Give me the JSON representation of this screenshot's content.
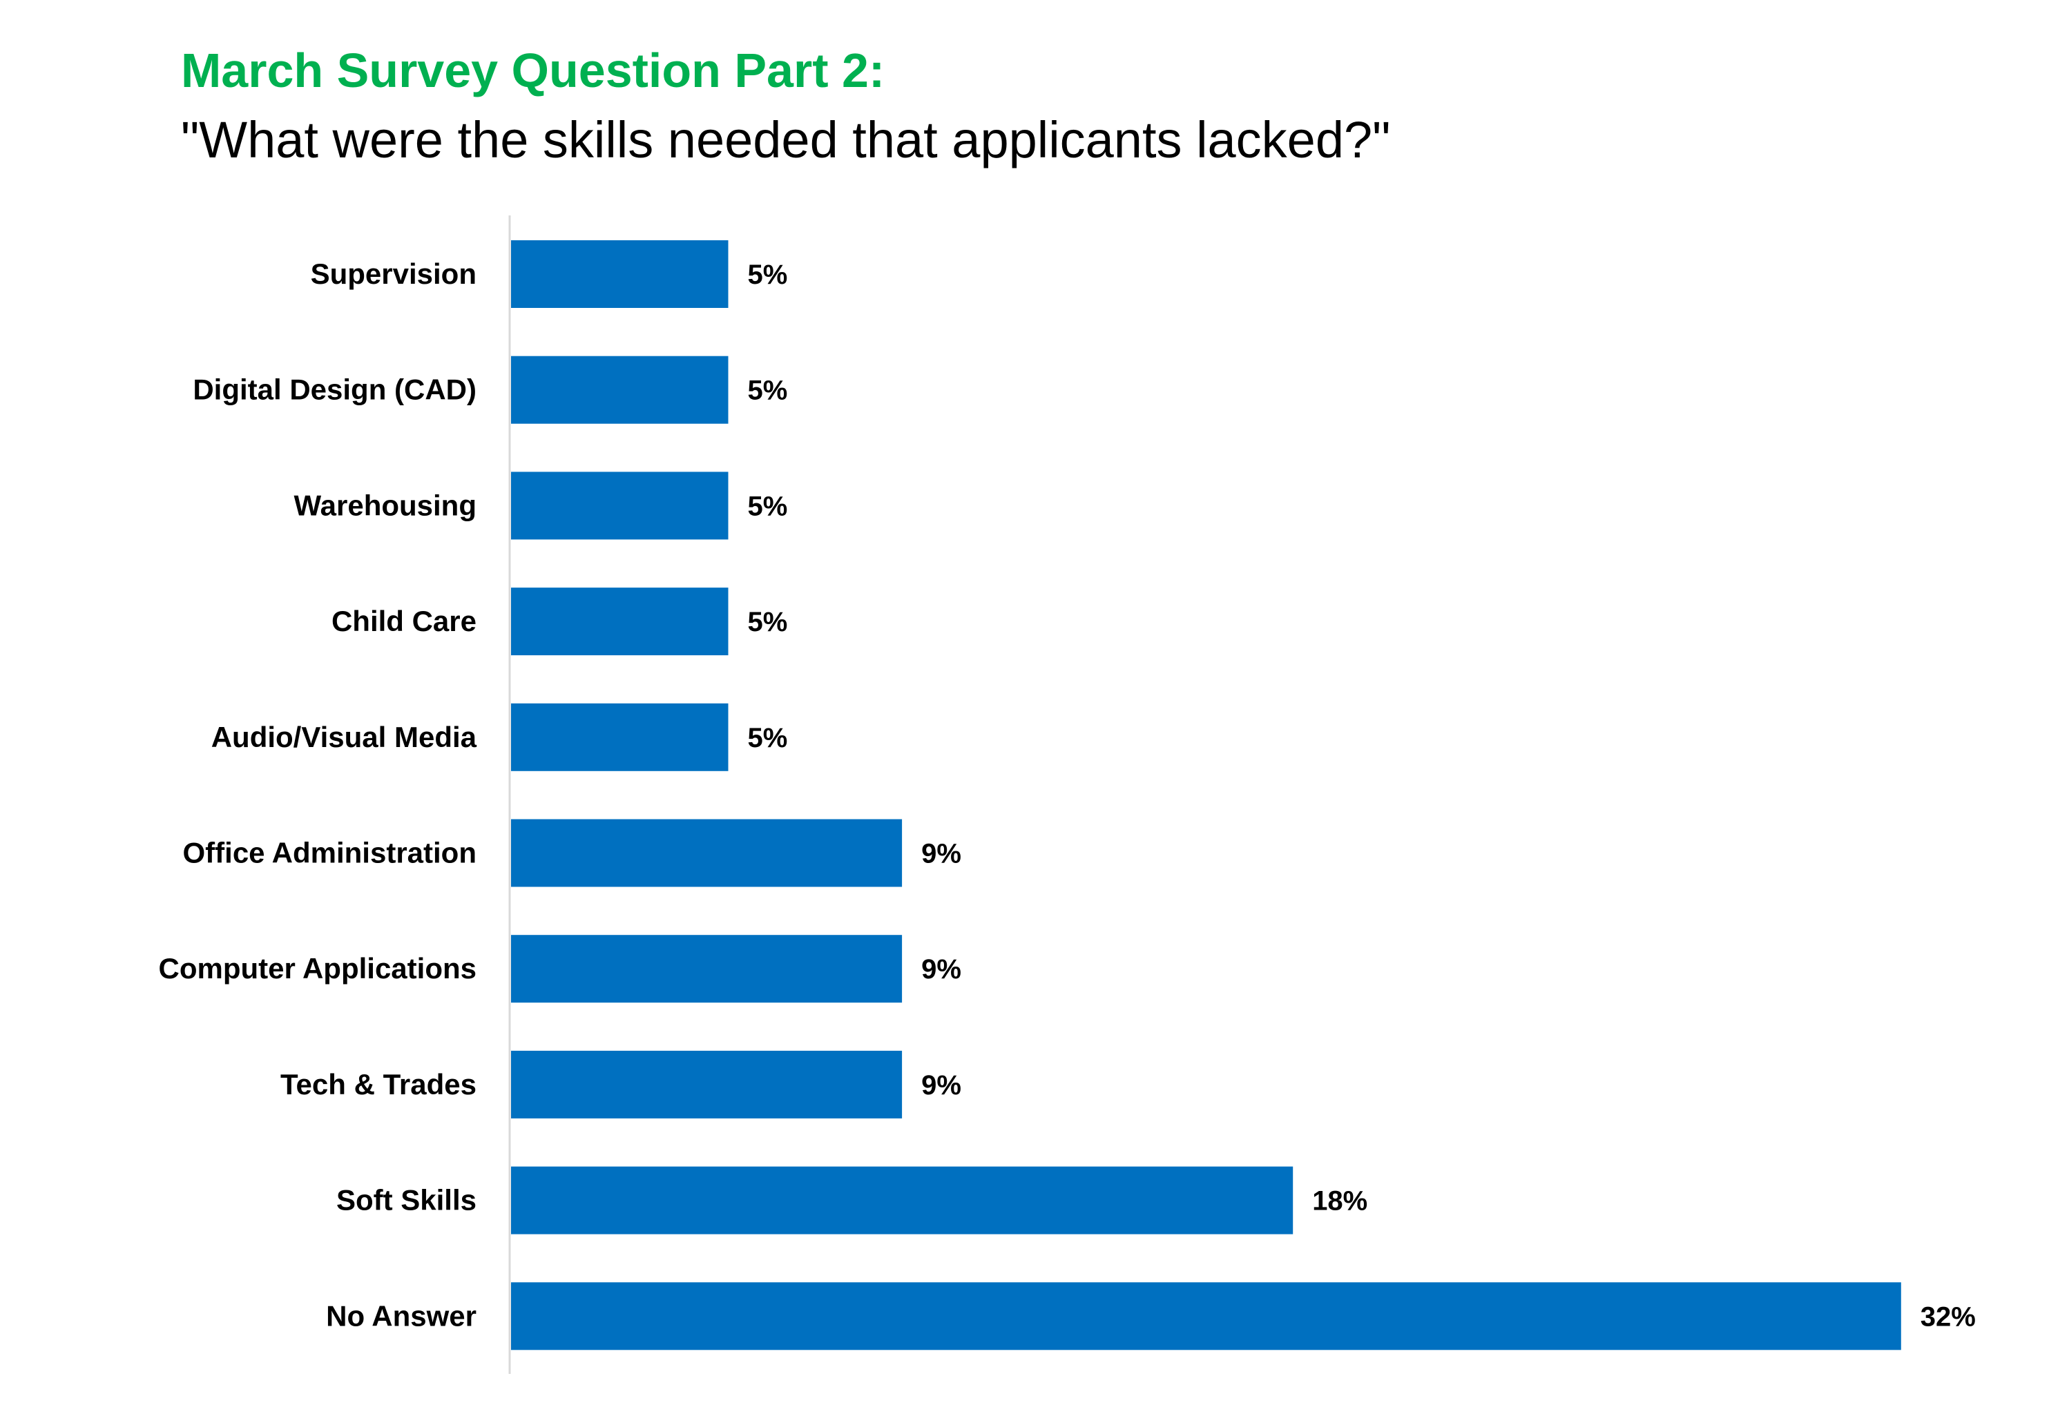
{
  "colors": {
    "title": "#00b050",
    "bar": "#0070c0",
    "axis": "#d9d9d9",
    "text": "#000000"
  },
  "chart_data": {
    "type": "bar",
    "orientation": "horizontal",
    "title": "March Survey Question Part 2:",
    "subtitle": "\"What were the skills needed that applicants lacked?\"",
    "categories": [
      "Supervision",
      "Digital Design (CAD)",
      "Warehousing",
      "Child Care",
      "Audio/Visual Media",
      "Office Administration",
      "Computer Applications",
      "Tech & Trades",
      "Soft Skills",
      "No Answer"
    ],
    "values": [
      5,
      5,
      5,
      5,
      5,
      9,
      9,
      9,
      18,
      32
    ],
    "data_labels": [
      "5%",
      "5%",
      "5%",
      "5%",
      "5%",
      "9%",
      "9%",
      "9%",
      "18%",
      "32%"
    ],
    "unit": "%",
    "xlim": [
      0,
      32
    ],
    "grid": false,
    "legend": "none"
  }
}
